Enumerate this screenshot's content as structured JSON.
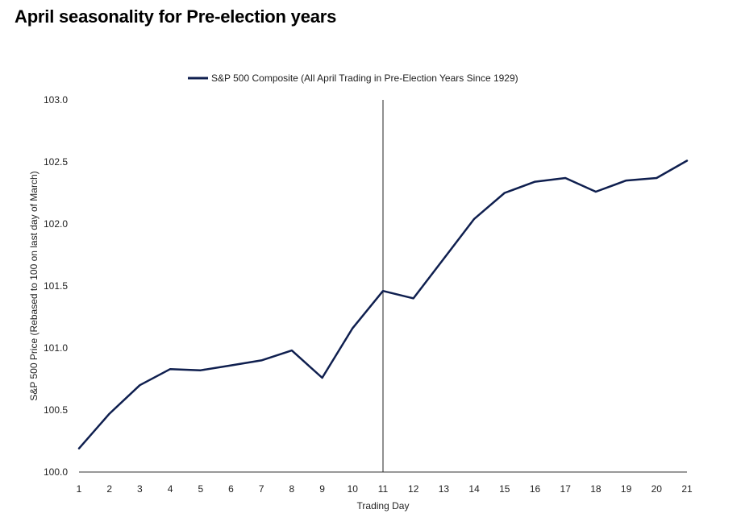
{
  "title": "April seasonality for Pre-election years",
  "chart_data": {
    "type": "line",
    "title": "April seasonality for Pre-election years",
    "xlabel": "Trading Day",
    "ylabel": "S&P 500 Price (Rebased to 100 on last day of March)",
    "x": [
      1,
      2,
      3,
      4,
      5,
      6,
      7,
      8,
      9,
      10,
      11,
      12,
      13,
      14,
      15,
      16,
      17,
      18,
      19,
      20,
      21
    ],
    "ylim": [
      100.0,
      103.0
    ],
    "yticks": [
      "100.0",
      "100.5",
      "101.0",
      "101.5",
      "102.0",
      "102.5",
      "103.0"
    ],
    "xticks": [
      "1",
      "2",
      "3",
      "4",
      "5",
      "6",
      "7",
      "8",
      "9",
      "10",
      "11",
      "12",
      "13",
      "14",
      "15",
      "16",
      "17",
      "18",
      "19",
      "20",
      "21"
    ],
    "series": [
      {
        "name": "S&P 500 Composite (All April Trading in Pre-Election Years Since 1929)",
        "color": "#0f1f4f",
        "values": [
          100.19,
          100.47,
          100.7,
          100.83,
          100.82,
          100.86,
          100.9,
          100.98,
          100.76,
          101.16,
          101.46,
          101.4,
          101.72,
          102.04,
          102.25,
          102.34,
          102.37,
          102.26,
          102.35,
          102.37,
          102.51
        ]
      }
    ],
    "vertical_line_x": 11,
    "legend_position": "top-center",
    "grid": false
  }
}
